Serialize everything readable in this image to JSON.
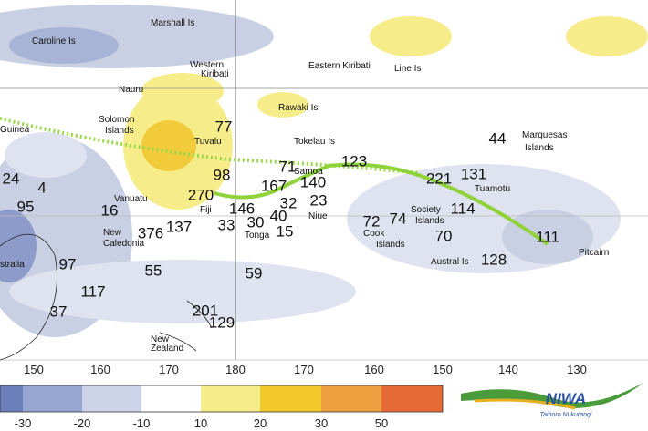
{
  "map": {
    "place_labels": [
      "Caroline Is",
      "Marshall Is",
      "Western",
      "Kiribati",
      "Eastern Kiribati",
      "Line Is",
      "Nauru",
      "Rawaki Is",
      "Guinea",
      "Solomon",
      "Islands",
      "Tuvalu",
      "Tokelau Is",
      "Marquesas",
      "Islands",
      "Samoa",
      "Tuamotu",
      "Vanuatu",
      "Fiji",
      "Niue",
      "Society",
      "Islands",
      "Cook",
      "Islands",
      "New",
      "Caledonia",
      "Tonga",
      "stralia",
      "Austral Is",
      "Pitcairn",
      "New",
      "Zealand"
    ],
    "values": [
      77,
      44,
      24,
      4,
      98,
      123,
      221,
      131,
      71,
      167,
      140,
      270,
      146,
      32,
      23,
      95,
      16,
      376,
      137,
      33,
      30,
      40,
      15,
      72,
      74,
      114,
      70,
      111,
      97,
      55,
      128,
      59,
      117,
      37,
      201,
      129
    ],
    "longitudes": [
      150,
      160,
      170,
      180,
      170,
      160,
      150,
      140,
      130
    ]
  },
  "legend": {
    "ticks": [
      -30,
      -20,
      -10,
      10,
      20,
      30,
      50
    ]
  },
  "logo": {
    "name": "NIWA",
    "subtitle": "Taihoro Nukurangi"
  }
}
